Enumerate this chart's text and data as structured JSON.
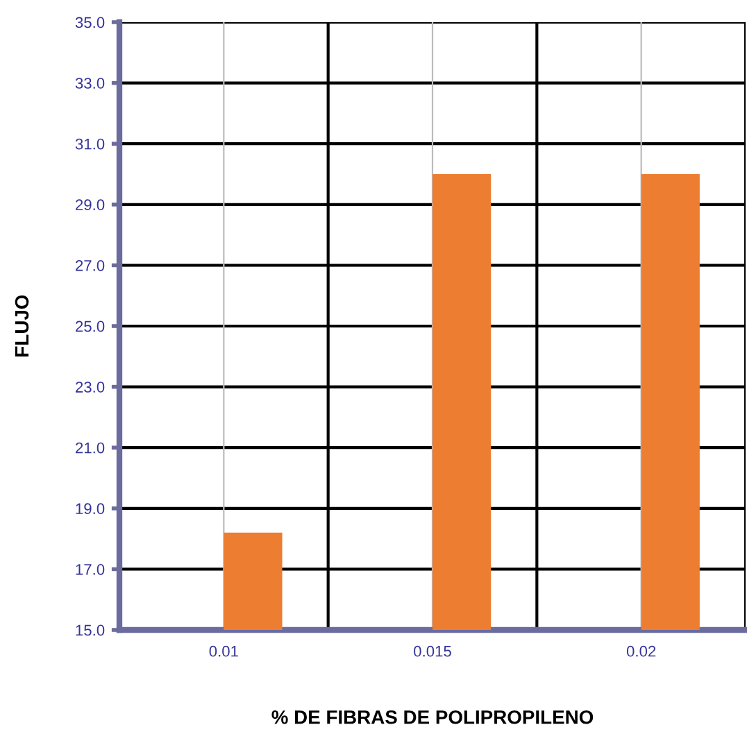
{
  "chart_data": {
    "type": "bar",
    "xlabel": "% DE FIBRAS DE POLIPROPILENO",
    "ylabel": "FLUJO",
    "categories": [
      "0.01",
      "0.015",
      "0.02"
    ],
    "values": [
      18.2,
      30.0,
      30.0
    ],
    "color": "#ed7d31",
    "ylim": [
      15,
      35
    ],
    "yticks": [
      {
        "value": 15,
        "label": "15.0"
      },
      {
        "value": 17,
        "label": "17.0"
      },
      {
        "value": 19,
        "label": "19.0"
      },
      {
        "value": 21,
        "label": "21.0"
      },
      {
        "value": 23,
        "label": "23.0"
      },
      {
        "value": 25,
        "label": "25.0"
      },
      {
        "value": 27,
        "label": "27.0"
      },
      {
        "value": 29,
        "label": "29.0"
      },
      {
        "value": 31,
        "label": "31.0"
      },
      {
        "value": 33,
        "label": "33.0"
      },
      {
        "value": 35,
        "label": "35.0"
      }
    ],
    "grid": true
  }
}
